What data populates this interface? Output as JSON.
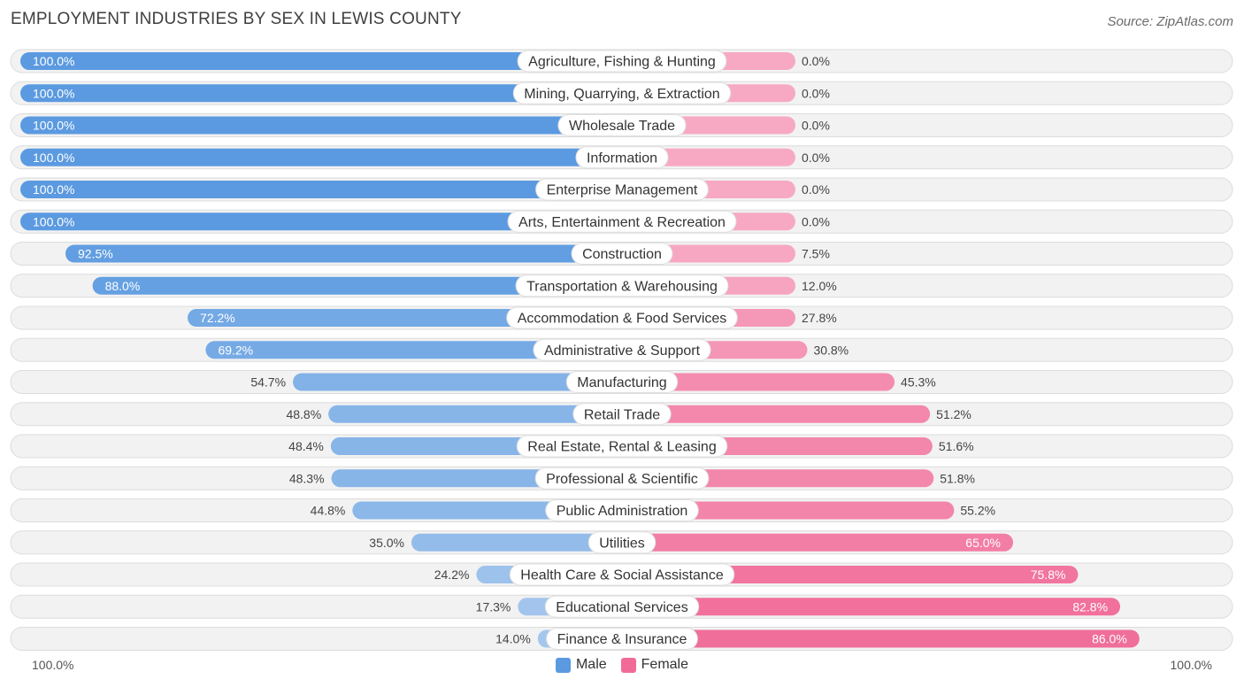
{
  "title": "EMPLOYMENT INDUSTRIES BY SEX IN LEWIS COUNTY",
  "source": "Source: ZipAtlas.com",
  "colors": {
    "male": "#5b9ae0",
    "male_light": "#a9c9ee",
    "female": "#f06b98",
    "female_light": "#f7a9c3",
    "row_bg": "#f2f2f2",
    "row_border": "#dcdcdc"
  },
  "legend": {
    "male": "Male",
    "female": "Female"
  },
  "axis": {
    "left_label": "100.0%",
    "right_label": "100.0%"
  },
  "chart_data": {
    "type": "bar",
    "orientation": "horizontal-diverging",
    "title": "EMPLOYMENT INDUSTRIES BY SEX IN LEWIS COUNTY",
    "categories": [
      "Agriculture, Fishing & Hunting",
      "Mining, Quarrying, & Extraction",
      "Wholesale Trade",
      "Information",
      "Enterprise Management",
      "Arts, Entertainment & Recreation",
      "Construction",
      "Transportation & Warehousing",
      "Accommodation & Food Services",
      "Administrative & Support",
      "Manufacturing",
      "Retail Trade",
      "Real Estate, Rental & Leasing",
      "Professional & Scientific",
      "Public Administration",
      "Utilities",
      "Health Care & Social Assistance",
      "Educational Services",
      "Finance & Insurance"
    ],
    "series": [
      {
        "name": "Male",
        "values": [
          100.0,
          100.0,
          100.0,
          100.0,
          100.0,
          100.0,
          92.5,
          88.0,
          72.2,
          69.2,
          54.7,
          48.8,
          48.4,
          48.3,
          44.8,
          35.0,
          24.2,
          17.3,
          14.0
        ]
      },
      {
        "name": "Female",
        "values": [
          0.0,
          0.0,
          0.0,
          0.0,
          0.0,
          0.0,
          7.5,
          12.0,
          27.8,
          30.8,
          45.3,
          51.2,
          51.6,
          51.8,
          55.2,
          65.0,
          75.8,
          82.8,
          86.0
        ]
      }
    ],
    "xlim": [
      -100,
      100
    ],
    "xlabel_left": "100.0%",
    "xlabel_right": "100.0%"
  }
}
